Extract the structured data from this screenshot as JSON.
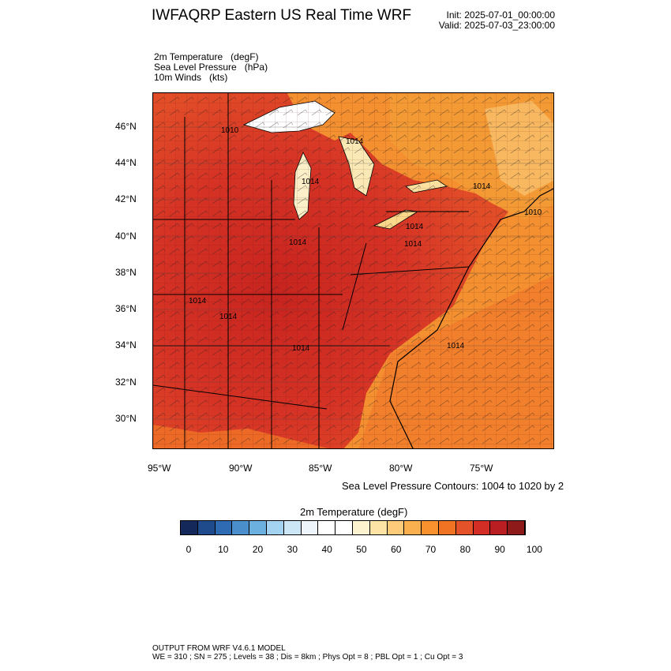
{
  "header": {
    "title": "IWFAQRP Eastern US Real Time WRF",
    "init": "Init: 2025-07-01_00:00:00",
    "valid": "Valid: 2025-07-03_23:00:00"
  },
  "fields": [
    {
      "name": "2m Temperature",
      "unit": "(degF)"
    },
    {
      "name": "Sea Level Pressure",
      "unit": "(hPa)"
    },
    {
      "name": "10m Winds",
      "unit": "(kts)"
    }
  ],
  "map": {
    "lat_labels": [
      "46°N",
      "44°N",
      "42°N",
      "40°N",
      "38°N",
      "36°N",
      "34°N",
      "32°N",
      "30°N"
    ],
    "lon_labels": [
      "95°W",
      "90°W",
      "85°W",
      "80°W",
      "75°W"
    ],
    "slp_contour_labels": [
      "1010",
      "1014",
      "1014",
      "1014",
      "1014",
      "1014",
      "1014",
      "1014",
      "1014",
      "1014",
      "1014",
      "1010"
    ],
    "contour_note": "Sea Level Pressure Contours: 1004 to 1020 by 2"
  },
  "colorbar": {
    "title": "2m Temperature  (degF)",
    "tick_labels": [
      "0",
      "10",
      "20",
      "30",
      "40",
      "50",
      "60",
      "70",
      "80",
      "90",
      "100"
    ],
    "colors": [
      "#14285a",
      "#1f4a8c",
      "#2e6bb3",
      "#4a8fcc",
      "#6cb0e0",
      "#a3d3f0",
      "#cde6f5",
      "#eef6fb",
      "#ffffff",
      "#ffffff",
      "#fdf2cf",
      "#fde4a6",
      "#fdcb7a",
      "#fbb04f",
      "#f7922f",
      "#ef7322",
      "#e4522a",
      "#d22e26",
      "#b91e23",
      "#8f1a1a"
    ]
  },
  "footer": {
    "line1": "OUTPUT FROM WRF V4.6.1 MODEL",
    "line2": "WE = 310 ; SN = 275 ; Levels = 38 ; Dis = 8km ; Phys Opt = 8 ; PBL Opt = 1 ; Cu Opt = 3"
  }
}
